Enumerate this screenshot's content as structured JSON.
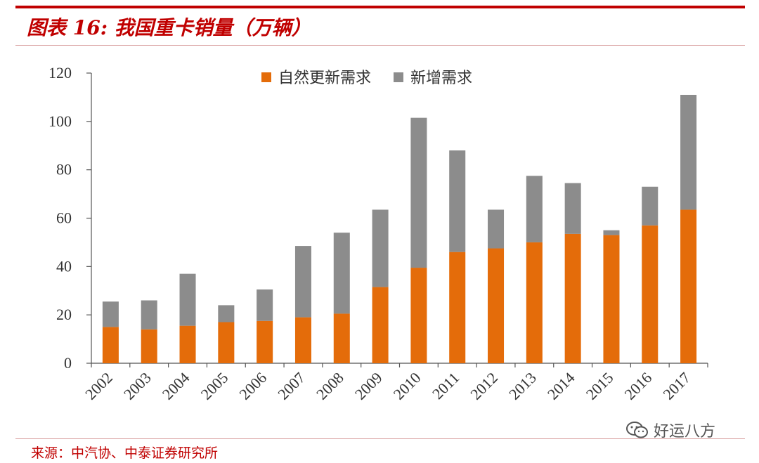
{
  "header": {
    "title": "图表 16:  我国重卡销量（万辆）"
  },
  "footer": {
    "source": "来源：中汽协、中泰证券研究所",
    "watermark": "好运八方"
  },
  "colors": {
    "accent": "#c00000",
    "natural": "#e46c0a",
    "new": "#8c8c8c"
  },
  "chart_data": {
    "type": "bar",
    "stacked": true,
    "categories": [
      "2002",
      "2003",
      "2004",
      "2005",
      "2006",
      "2007",
      "2008",
      "2009",
      "2010",
      "2011",
      "2012",
      "2013",
      "2014",
      "2015",
      "2016",
      "2017"
    ],
    "series": [
      {
        "name": "自然更新需求",
        "color": "#e46c0a",
        "values": [
          15,
          14,
          15.5,
          17,
          17.5,
          19,
          20.5,
          31.5,
          39.5,
          46,
          47.5,
          50,
          53.5,
          53,
          57,
          63.5
        ]
      },
      {
        "name": "新增需求",
        "color": "#8c8c8c",
        "values": [
          10.5,
          12,
          21.5,
          7,
          13,
          29.5,
          33.5,
          32,
          62,
          42,
          16,
          27.5,
          21,
          2,
          16,
          47.5
        ]
      }
    ],
    "ylim": [
      0,
      120
    ],
    "yticks": [
      0,
      20,
      40,
      60,
      80,
      100,
      120
    ],
    "xlabel": "",
    "ylabel": "",
    "legend_position": "top",
    "grid": false
  }
}
